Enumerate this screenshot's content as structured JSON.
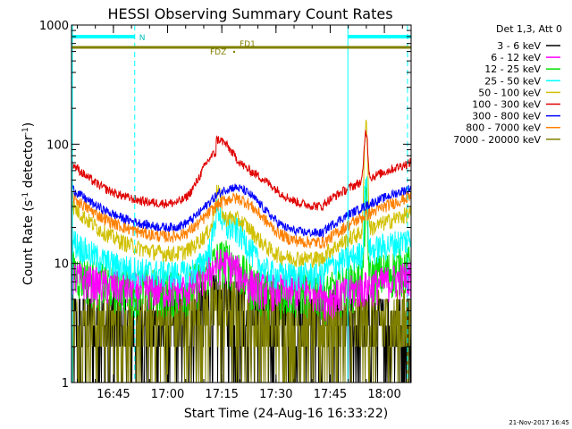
{
  "chart_data": {
    "type": "line",
    "title": "HESSI Observing Summary Count Rates",
    "ylabel_base": "Count Rate (s",
    "ylabel_sup": "-1",
    "ylabel_rest": " detector",
    "ylabel_sup2": "-1",
    "ylabel_end": ")",
    "xlabel": "Start Time (24-Aug-16 16:33:22)",
    "x_start_minutes": 0,
    "x_end_minutes": 94,
    "ylim": [
      1,
      1000
    ],
    "yscale": "log",
    "x_tick_labels": [
      {
        "label": "16:45",
        "minutes": 11.6
      },
      {
        "label": "17:00",
        "minutes": 26.6
      },
      {
        "label": "17:15",
        "minutes": 41.6
      },
      {
        "label": "17:30",
        "minutes": 56.6
      },
      {
        "label": "17:45",
        "minutes": 71.6
      },
      {
        "label": "18:00",
        "minutes": 86.6
      }
    ],
    "y_tick_labels": [
      {
        "label": "1",
        "value": 1
      },
      {
        "label": "10",
        "value": 10
      },
      {
        "label": "100",
        "value": 100
      },
      {
        "label": "1000",
        "value": 1000
      }
    ],
    "legend_title": "Det 1,3, Att 0",
    "series": [
      {
        "name": "3 - 6 keV",
        "color": "#000000"
      },
      {
        "name": "6 - 12 keV",
        "color": "#ff00ff"
      },
      {
        "name": "12 - 25 keV",
        "color": "#00e000"
      },
      {
        "name": "25 - 50 keV",
        "color": "#00ffff"
      },
      {
        "name": "50 - 100 keV",
        "color": "#d0c000"
      },
      {
        "name": "100 - 300 keV",
        "color": "#e00000"
      },
      {
        "name": "300 - 800 keV",
        "color": "#0000ff"
      },
      {
        "name": "800 - 7000 keV",
        "color": "#ff8000"
      },
      {
        "name": "7000 - 20000 keV",
        "color": "#808000"
      }
    ],
    "flags": {
      "n_label": "N",
      "fd1_label": "FD1",
      "fdz_label": "FDZ",
      "fd_level": 650,
      "night_segments": [
        [
          0,
          17.5
        ],
        [
          76.5,
          94
        ]
      ],
      "saa_lines": [
        17.5,
        76.5
      ]
    }
  },
  "footer": {
    "timestamp": "21-Nov-2017 16:45"
  },
  "colors": {
    "night_bar": "#00ffff",
    "fd_line": "#808000"
  }
}
